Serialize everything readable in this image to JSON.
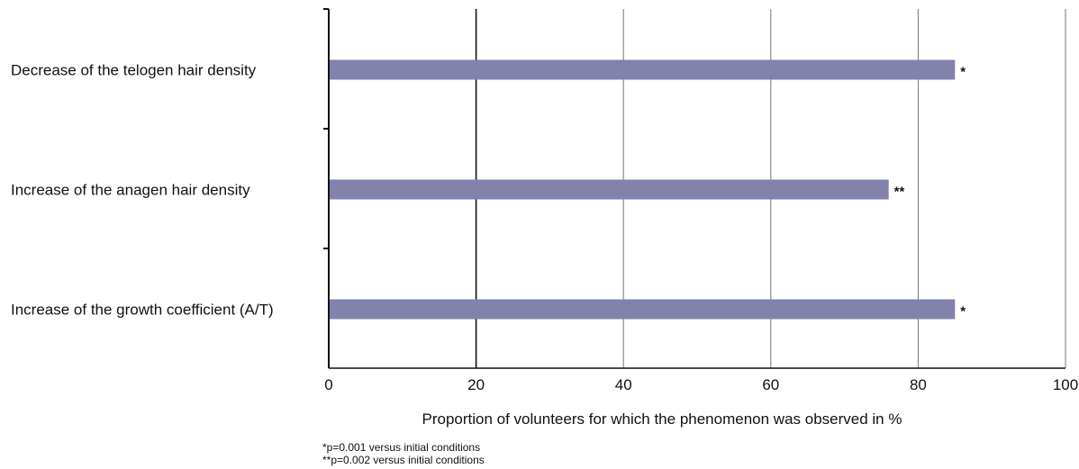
{
  "chart_data": {
    "type": "bar",
    "orientation": "horizontal",
    "categories": [
      "Decrease of the telogen hair density",
      "Increase of the anagen hair density",
      "Increase of the growth coefficient (A/T)"
    ],
    "values": [
      85,
      76,
      85
    ],
    "value_annotations": [
      "*",
      "**",
      "*"
    ],
    "xlabel": "Proportion of volunteers for which the phenomenon was observed in %",
    "xlim": [
      0,
      100
    ],
    "xticks": [
      0,
      20,
      40,
      60,
      80,
      100
    ],
    "grid": "vertical",
    "bar_color": "#8282ac",
    "legend": "none"
  },
  "footnotes": [
    "*p=0.001 versus initial conditions",
    "**p=0.002 versus initial conditions"
  ]
}
